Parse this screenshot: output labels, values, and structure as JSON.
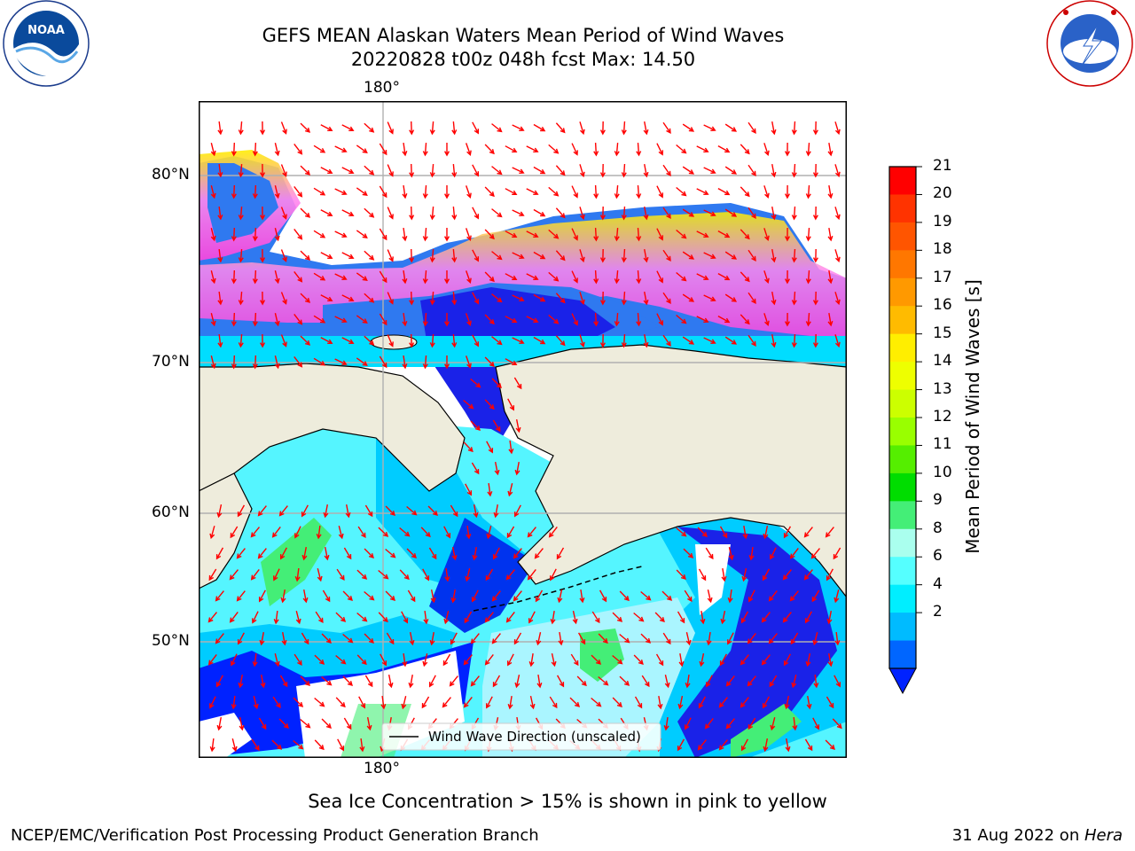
{
  "header": {
    "title_line1": "GEFS MEAN Alaskan Waters Mean Period of Wind Waves",
    "title_line2": "20220828 t00z 048h fcst   Max: 14.50"
  },
  "logos": {
    "noaa_text": "NOAA",
    "noaa_ring": "NATIONAL OCEANIC AND ATMOSPHERIC ADMINISTRATION · U.S. DEPARTMENT OF COMMERCE",
    "nws_ring": "NATIONAL WEATHER SERVICE"
  },
  "map": {
    "lon_top": "180°",
    "lon_bottom": "180°",
    "lat_labels": [
      "80°N",
      "70°N",
      "60°N",
      "50°N"
    ],
    "legend_text": "Wind Wave Direction (unscaled)",
    "colors": {
      "land": "#eeecdc",
      "arrow": "#ff0000",
      "grid": "#b0b0b0"
    }
  },
  "colorbar": {
    "title": "Mean Period of Wind Waves [s]",
    "ticks": [
      "21",
      "20",
      "19",
      "18",
      "17",
      "16",
      "15",
      "14",
      "13",
      "12",
      "11",
      "10",
      "9",
      "8",
      "6",
      "4",
      "2"
    ],
    "colors": [
      "#ff0000",
      "#ff3300",
      "#ff5500",
      "#ff7700",
      "#ff9900",
      "#ffbb00",
      "#ffee00",
      "#eeff00",
      "#ccff00",
      "#99ff00",
      "#55ee00",
      "#00dd00",
      "#44ee77",
      "#aaffee",
      "#55ffff",
      "#00eeff",
      "#00bbff",
      "#0066ff"
    ],
    "extend_color": "#0022ff"
  },
  "footer": {
    "caption": "Sea Ice Concentration > 15% is shown in pink to yellow",
    "credit": "NCEP/EMC/Verification Post Processing Product Generation Branch",
    "date": "31 Aug 2022 on ",
    "machine": "Hera"
  }
}
